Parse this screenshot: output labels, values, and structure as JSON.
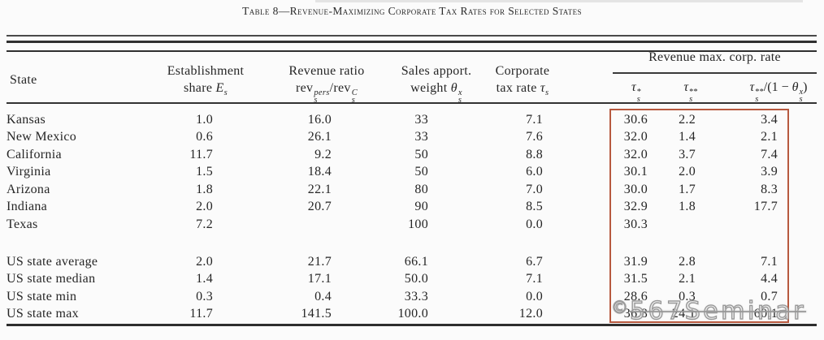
{
  "title": "Table 8—Revenue-Maximizing Corporate Tax Rates for Selected States",
  "header": {
    "state": "State",
    "est": {
      "line1": "Establishment",
      "line2": "share ",
      "var": "E",
      "var_sub": "s"
    },
    "rev": {
      "line1": "Revenue ratio",
      "num": "rev",
      "num_sup": "pers",
      "num_sub": "s",
      "slash": "/",
      "den": "rev",
      "den_sup": "C",
      "den_sub": "s"
    },
    "sales": {
      "line1": "Sales apport.",
      "line2": "weight ",
      "var": "θ",
      "var_sup": "x",
      "var_sub": "s"
    },
    "corp": {
      "line1": "Corporate",
      "line2": "tax rate ",
      "var": "τ",
      "var_sub": "s"
    },
    "group": {
      "title": "Revenue max. corp. rate",
      "sub1": {
        "var": "τ",
        "sup": "*",
        "sub": "s"
      },
      "sub2": {
        "var": "τ",
        "sup": "**",
        "sub": "s"
      },
      "sub3": {
        "var": "τ",
        "sup": "**",
        "sub": "s",
        "mid": "/(1 − ",
        "var2": "θ",
        "var2_sup": "x",
        "var2_sub": "s",
        "close": ")"
      }
    }
  },
  "table": {
    "order": [
      "state",
      "est",
      "rev",
      "sales",
      "corp",
      "t1",
      "t2",
      "t3"
    ],
    "rows": [
      {
        "state": "Kansas",
        "est": "1.0",
        "rev": "16.0",
        "sales": "33",
        "corp": "7.1",
        "t1": "30.6",
        "t2": "2.2",
        "t3": "3.4"
      },
      {
        "state": "New Mexico",
        "est": "0.6",
        "rev": "26.1",
        "sales": "33",
        "corp": "7.6",
        "t1": "32.0",
        "t2": "1.4",
        "t3": "2.1"
      },
      {
        "state": "California",
        "est": "11.7",
        "rev": "9.2",
        "sales": "50",
        "corp": "8.8",
        "t1": "32.0",
        "t2": "3.7",
        "t3": "7.4"
      },
      {
        "state": "Virginia",
        "est": "1.5",
        "rev": "18.4",
        "sales": "50",
        "corp": "6.0",
        "t1": "30.1",
        "t2": "2.0",
        "t3": "3.9"
      },
      {
        "state": "Arizona",
        "est": "1.8",
        "rev": "22.1",
        "sales": "80",
        "corp": "7.0",
        "t1": "30.0",
        "t2": "1.7",
        "t3": "8.3"
      },
      {
        "state": "Indiana",
        "est": "2.0",
        "rev": "20.7",
        "sales": "90",
        "corp": "8.5",
        "t1": "32.9",
        "t2": "1.8",
        "t3": "17.7"
      },
      {
        "state": "Texas",
        "est": "7.2",
        "rev": "",
        "sales": "100",
        "corp": "0.0",
        "t1": "30.3",
        "t2": "",
        "t3": ""
      },
      {
        "state": "US state average",
        "est": "2.0",
        "rev": "21.7",
        "sales": "66.1",
        "corp": "6.7",
        "t1": "31.9",
        "t2": "2.8",
        "t3": "7.1",
        "gap_before": true
      },
      {
        "state": "US state median",
        "est": "1.4",
        "rev": "17.1",
        "sales": "50.0",
        "corp": "7.1",
        "t1": "31.5",
        "t2": "2.1",
        "t3": "4.4"
      },
      {
        "state": "US state min",
        "est": "0.3",
        "rev": "0.4",
        "sales": "33.3",
        "corp": "0.0",
        "t1": "28.6",
        "t2": "0.3",
        "t3": "0.7"
      },
      {
        "state": "US state max",
        "est": "11.7",
        "rev": "141.5",
        "sales": "100.0",
        "corp": "12.0",
        "t1": "36.8",
        "t2": "24.1",
        "t3": "60.1"
      }
    ]
  },
  "watermark": {
    "copyright": "©",
    "text": "567Seminar"
  },
  "accent": {
    "highlight_box_color": "#b7593f",
    "rule_color": "#333333"
  }
}
